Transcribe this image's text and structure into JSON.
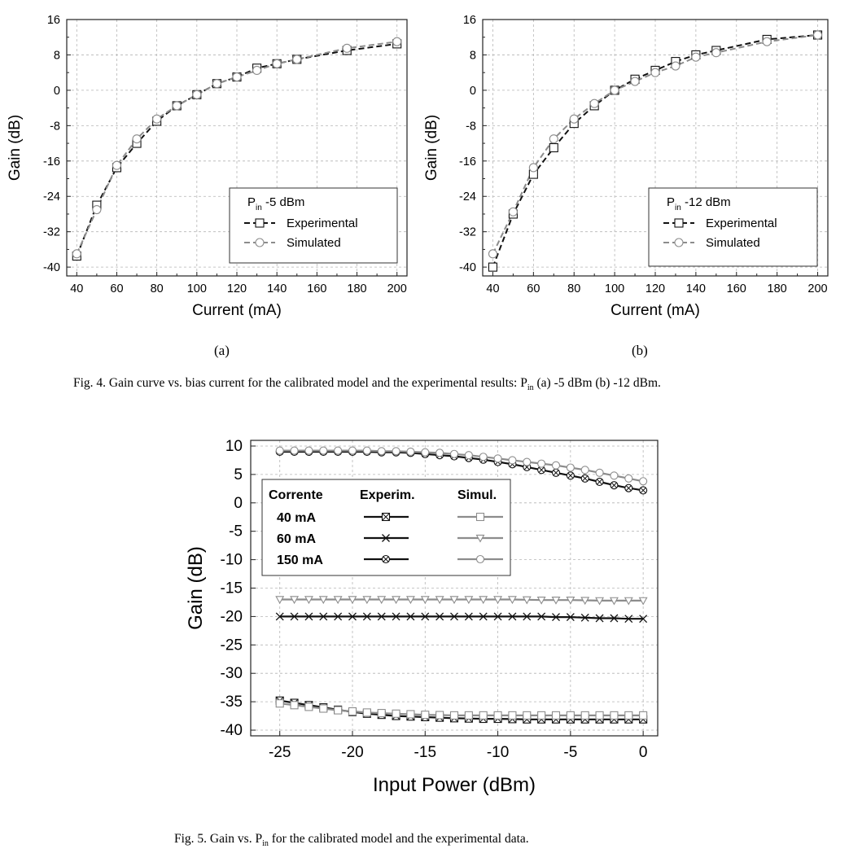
{
  "figure4": {
    "caption_prefix": "Fig. 4. Gain curve vs. bias current for the calibrated model and the experimental results: P",
    "caption_sub": "in",
    "caption_suffix": " (a) -5 dBm (b) -12 dBm.",
    "panel_a_label": "(a)",
    "panel_b_label": "(b)"
  },
  "figure5": {
    "caption_prefix": "Fig. 5. Gain vs. P",
    "caption_sub": "in",
    "caption_suffix": " for the calibrated model and the experimental data."
  },
  "colors": {
    "experimental": "#111111",
    "simulated": "#8c8c8c",
    "grid": "#b5b5b5"
  },
  "chart_data": [
    {
      "id": "fig4a",
      "type": "line",
      "xlabel": "Current (mA)",
      "ylabel": "Gain (dB)",
      "xlim": [
        35,
        205
      ],
      "ylim": [
        -42,
        16
      ],
      "xticks": [
        40,
        60,
        80,
        100,
        120,
        140,
        160,
        180,
        200
      ],
      "yticks": [
        -40,
        -32,
        -24,
        -16,
        -8,
        0,
        8,
        16
      ],
      "grid": true,
      "legend_position": "bottom-right",
      "legend_title_main": "P",
      "legend_title_sub": "in",
      "legend_title_rest": " -5 dBm",
      "series": [
        {
          "name": "Experimental",
          "marker": "square",
          "dash": "dashed",
          "color": "#111111",
          "x": [
            40,
            50,
            60,
            70,
            80,
            90,
            100,
            110,
            120,
            130,
            140,
            150,
            175,
            200
          ],
          "y": [
            -37.5,
            -26,
            -17.5,
            -12,
            -7,
            -3.5,
            -1,
            1.5,
            3,
            5,
            6,
            7,
            9,
            10.5
          ]
        },
        {
          "name": "Simulated",
          "marker": "circle",
          "dash": "dashed",
          "color": "#8c8c8c",
          "x": [
            40,
            50,
            60,
            70,
            80,
            90,
            100,
            110,
            120,
            130,
            140,
            150,
            175,
            200
          ],
          "y": [
            -37,
            -27,
            -17,
            -11,
            -6.5,
            -3.5,
            -1,
            1.5,
            3,
            4.5,
            6,
            7,
            9.5,
            11
          ]
        }
      ]
    },
    {
      "id": "fig4b",
      "type": "line",
      "xlabel": "Current (mA)",
      "ylabel": "Gain (dB)",
      "xlim": [
        35,
        205
      ],
      "ylim": [
        -42,
        16
      ],
      "xticks": [
        40,
        60,
        80,
        100,
        120,
        140,
        160,
        180,
        200
      ],
      "yticks": [
        -40,
        -32,
        -24,
        -16,
        -8,
        0,
        8,
        16
      ],
      "grid": true,
      "legend_position": "bottom-right",
      "legend_title_main": "P",
      "legend_title_sub": "in",
      "legend_title_rest": " -12 dBm",
      "series": [
        {
          "name": "Experimental",
          "marker": "square",
          "dash": "dashed",
          "color": "#111111",
          "x": [
            40,
            50,
            60,
            70,
            80,
            90,
            100,
            110,
            120,
            130,
            140,
            150,
            175,
            200
          ],
          "y": [
            -40,
            -28,
            -19,
            -13,
            -7.5,
            -3.5,
            0,
            2.5,
            4.5,
            6.5,
            8,
            9,
            11.5,
            12.5
          ]
        },
        {
          "name": "Simulated",
          "marker": "circle",
          "dash": "dashed",
          "color": "#8c8c8c",
          "x": [
            40,
            50,
            60,
            70,
            80,
            90,
            100,
            110,
            120,
            130,
            140,
            150,
            175,
            200
          ],
          "y": [
            -37,
            -27.5,
            -17.5,
            -11,
            -6.5,
            -3,
            0,
            2,
            4,
            5.5,
            7.5,
            8.5,
            11,
            12.5
          ]
        }
      ]
    },
    {
      "id": "fig5",
      "type": "line",
      "xlabel": "Input Power (dBm)",
      "ylabel": "Gain (dB)",
      "xlim": [
        -27,
        1
      ],
      "ylim": [
        -41,
        11
      ],
      "xticks": [
        -25,
        -20,
        -15,
        -10,
        -5,
        0
      ],
      "yticks": [
        -40,
        -35,
        -30,
        -25,
        -20,
        -15,
        -10,
        -5,
        0,
        5,
        10
      ],
      "grid": true,
      "legend_position": "top-left",
      "legend_headers": [
        "Corrente",
        "Experim.",
        "Simul."
      ],
      "legend_rows": [
        "40 mA",
        "60 mA",
        "150 mA"
      ],
      "x": [
        -25,
        -24,
        -23,
        -22,
        -21,
        -20,
        -19,
        -18,
        -17,
        -16,
        -15,
        -14,
        -13,
        -12,
        -11,
        -10,
        -9,
        -8,
        -7,
        -6,
        -5,
        -4,
        -3,
        -2,
        -1,
        0
      ],
      "series": [
        {
          "name": "40 mA Experim.",
          "marker": "square-x",
          "color": "#111111",
          "y": [
            -34.8,
            -35.2,
            -35.6,
            -36.0,
            -36.4,
            -36.8,
            -37.1,
            -37.3,
            -37.5,
            -37.6,
            -37.7,
            -37.8,
            -37.9,
            -37.95,
            -38.0,
            -38.0,
            -38.05,
            -38.1,
            -38.1,
            -38.1,
            -38.1,
            -38.1,
            -38.1,
            -38.1,
            -38.1,
            -38.1
          ]
        },
        {
          "name": "40 mA Simul.",
          "marker": "square",
          "color": "#8c8c8c",
          "y": [
            -35.3,
            -35.6,
            -35.9,
            -36.2,
            -36.5,
            -36.7,
            -36.9,
            -37.0,
            -37.1,
            -37.2,
            -37.3,
            -37.35,
            -37.4,
            -37.4,
            -37.4,
            -37.4,
            -37.4,
            -37.4,
            -37.4,
            -37.4,
            -37.4,
            -37.4,
            -37.4,
            -37.4,
            -37.4,
            -37.4
          ]
        },
        {
          "name": "60 mA Experim.",
          "marker": "x",
          "color": "#111111",
          "y": [
            -20.0,
            -20.0,
            -20.0,
            -20.0,
            -20.0,
            -20.0,
            -20.0,
            -20.0,
            -20.0,
            -20.0,
            -20.0,
            -20.0,
            -20.0,
            -20.0,
            -20.0,
            -20.0,
            -20.0,
            -20.0,
            -20.0,
            -20.1,
            -20.1,
            -20.2,
            -20.3,
            -20.3,
            -20.4,
            -20.4
          ]
        },
        {
          "name": "60 mA Simul.",
          "marker": "triangle-down",
          "color": "#8c8c8c",
          "y": [
            -17.0,
            -17.0,
            -17.0,
            -17.0,
            -17.0,
            -17.0,
            -17.0,
            -17.0,
            -17.0,
            -17.0,
            -17.0,
            -17.0,
            -17.0,
            -17.0,
            -17.0,
            -17.0,
            -17.0,
            -17.05,
            -17.1,
            -17.1,
            -17.1,
            -17.15,
            -17.2,
            -17.2,
            -17.2,
            -17.2
          ]
        },
        {
          "name": "150 mA Experim.",
          "marker": "circle-x",
          "color": "#111111",
          "y": [
            9.0,
            9.0,
            9.0,
            9.0,
            9.0,
            9.0,
            9.0,
            8.9,
            8.9,
            8.8,
            8.6,
            8.4,
            8.2,
            7.9,
            7.6,
            7.2,
            6.8,
            6.3,
            5.8,
            5.3,
            4.8,
            4.3,
            3.7,
            3.1,
            2.6,
            2.2
          ]
        },
        {
          "name": "150 mA Simul.",
          "marker": "circle",
          "color": "#8c8c8c",
          "y": [
            9.2,
            9.2,
            9.2,
            9.2,
            9.2,
            9.2,
            9.2,
            9.1,
            9.1,
            9.0,
            8.9,
            8.8,
            8.6,
            8.4,
            8.1,
            7.8,
            7.5,
            7.2,
            6.9,
            6.6,
            6.2,
            5.8,
            5.3,
            4.8,
            4.3,
            3.8
          ]
        }
      ]
    }
  ]
}
